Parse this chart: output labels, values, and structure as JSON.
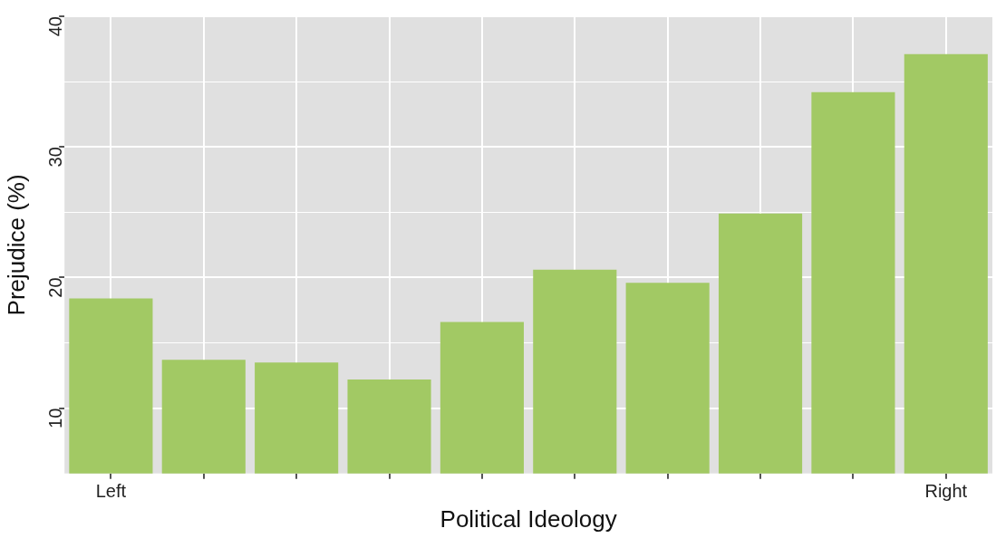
{
  "chart_data": {
    "type": "bar",
    "xlabel": "Political Ideology",
    "ylabel": "Prejudice (%)",
    "categories": [
      "Left",
      null,
      null,
      null,
      null,
      null,
      null,
      null,
      null,
      "Right"
    ],
    "values": [
      18.4,
      13.7,
      13.5,
      12.2,
      16.6,
      20.6,
      19.6,
      24.9,
      34.2,
      37.1
    ],
    "color": "#a2c964",
    "ylim": [
      5,
      40
    ],
    "yticks": [
      {
        "value": 10,
        "label": "10"
      },
      {
        "value": 15,
        "label": null
      },
      {
        "value": 20,
        "label": "20"
      },
      {
        "value": 25,
        "label": null
      },
      {
        "value": 30,
        "label": "30"
      },
      {
        "value": 35,
        "label": null
      },
      {
        "value": 40,
        "label": "40"
      }
    ],
    "grid": true,
    "legend": false
  }
}
